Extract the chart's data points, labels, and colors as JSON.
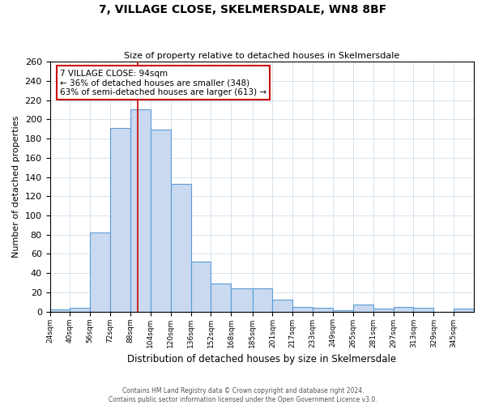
{
  "title": "7, VILLAGE CLOSE, SKELMERSDALE, WN8 8BF",
  "subtitle": "Size of property relative to detached houses in Skelmersdale",
  "xlabel": "Distribution of detached houses by size in Skelmersdale",
  "ylabel": "Number of detached properties",
  "footer_line1": "Contains HM Land Registry data © Crown copyright and database right 2024.",
  "footer_line2": "Contains public sector information licensed under the Open Government Licence v3.0.",
  "bin_labels": [
    "24sqm",
    "40sqm",
    "56sqm",
    "72sqm",
    "88sqm",
    "104sqm",
    "120sqm",
    "136sqm",
    "152sqm",
    "168sqm",
    "185sqm",
    "201sqm",
    "217sqm",
    "233sqm",
    "249sqm",
    "265sqm",
    "281sqm",
    "297sqm",
    "313sqm",
    "329sqm",
    "345sqm"
  ],
  "bar_values": [
    2,
    4,
    82,
    191,
    210,
    189,
    133,
    52,
    29,
    24,
    24,
    12,
    5,
    4,
    1,
    7,
    3,
    5,
    4,
    0,
    3
  ],
  "bar_color": "#c9d9f0",
  "bar_edge_color": "#5b9bd5",
  "ylim": [
    0,
    260
  ],
  "yticks": [
    0,
    20,
    40,
    60,
    80,
    100,
    120,
    140,
    160,
    180,
    200,
    220,
    240,
    260
  ],
  "marker_value": 94,
  "marker_color": "#cc0000",
  "annotation_title": "7 VILLAGE CLOSE: 94sqm",
  "annotation_line2": "← 36% of detached houses are smaller (348)",
  "annotation_line3": "63% of semi-detached houses are larger (613) →",
  "annotation_box_color": "#ffffff",
  "annotation_box_edge": "#cc0000",
  "x_positions": [
    24,
    40,
    56,
    72,
    88,
    104,
    120,
    136,
    152,
    168,
    185,
    201,
    217,
    233,
    249,
    265,
    281,
    297,
    313,
    329,
    345
  ]
}
